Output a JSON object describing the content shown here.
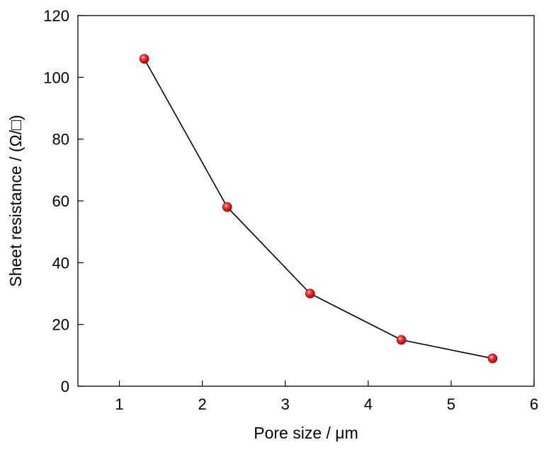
{
  "chart_data": {
    "type": "line",
    "title": "",
    "xlabel": "Pore size / μm",
    "ylabel": "Sheet resistance / (Ω/□)",
    "xlim": [
      0.5,
      6
    ],
    "ylim": [
      0,
      120
    ],
    "xticks": [
      1,
      2,
      3,
      4,
      5,
      6
    ],
    "yticks": [
      0,
      20,
      40,
      60,
      80,
      100,
      120
    ],
    "xtick_labels": [
      "1",
      "2",
      "3",
      "4",
      "5",
      "6"
    ],
    "ytick_labels": [
      "0",
      "20",
      "40",
      "60",
      "80",
      "100",
      "120"
    ],
    "grid": false,
    "legend": "none",
    "series": [
      {
        "x": [
          1.3,
          2.3,
          3.3,
          4.4,
          5.5
        ],
        "y": [
          106,
          58,
          30,
          15,
          9
        ],
        "line_color": "#000000",
        "marker": "sphere",
        "marker_color": "#e8000b"
      }
    ]
  }
}
